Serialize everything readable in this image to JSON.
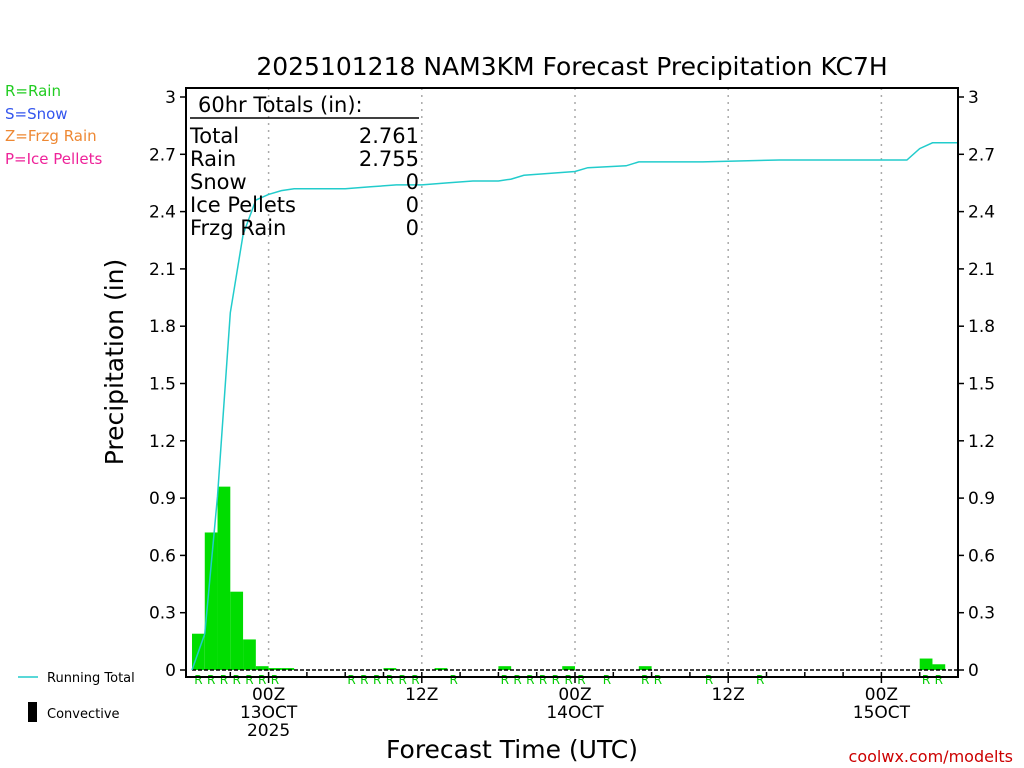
{
  "legend_left": {
    "items": [
      {
        "label": "R=Rain",
        "color": "#22cc22"
      },
      {
        "label": "S=Snow",
        "color": "#3355ee"
      },
      {
        "label": "Z=Frzg Rain",
        "color": "#ee8833"
      },
      {
        "label": "P=Ice Pellets",
        "color": "#ee2299"
      }
    ],
    "running_total": "Running Total",
    "convective": "Convective"
  },
  "totals_box": {
    "header": "60hr Totals (in):",
    "rows": [
      {
        "label": "Total",
        "value": "2.761"
      },
      {
        "label": "Rain",
        "value": "2.755"
      },
      {
        "label": "Snow",
        "value": "0"
      },
      {
        "label": "Ice Pellets",
        "value": "0"
      },
      {
        "label": "Frzg Rain",
        "value": "0"
      }
    ]
  },
  "credit": "coolwx.com/modelts",
  "colors": {
    "rain_bar": "#00dd00",
    "running_total": "#22cccc",
    "grid": "#aaaaaa"
  },
  "chart_data": {
    "type": "bar",
    "title": "2025101218 NAM3KM Forecast Precipitation KC7H",
    "xlabel": "Forecast Time (UTC)",
    "ylabel": "Precipitation (in)",
    "ylim": [
      0,
      3
    ],
    "yticks": [
      "0",
      "0.3",
      "0.6",
      "0.9",
      "1.2",
      "1.5",
      "1.8",
      "2.1",
      "2.4",
      "2.7",
      "3"
    ],
    "x_unit": "forecast hour",
    "xlim": [
      0,
      60
    ],
    "xticks": [
      {
        "hour": 6,
        "lines": [
          "00Z",
          "13OCT",
          "2025"
        ]
      },
      {
        "hour": 18,
        "lines": [
          "12Z"
        ]
      },
      {
        "hour": 30,
        "lines": [
          "00Z",
          "14OCT"
        ]
      },
      {
        "hour": 42,
        "lines": [
          "12Z"
        ]
      },
      {
        "hour": 54,
        "lines": [
          "00Z",
          "15OCT"
        ]
      }
    ],
    "hourly_precip": {
      "name": "Rain",
      "hours": [
        1,
        2,
        3,
        4,
        5,
        6,
        7,
        8,
        9,
        10,
        11,
        12,
        13,
        14,
        15,
        16,
        17,
        18,
        19,
        20,
        21,
        22,
        23,
        24,
        25,
        26,
        27,
        28,
        29,
        30,
        31,
        32,
        33,
        34,
        35,
        36,
        37,
        38,
        39,
        40,
        41,
        42,
        43,
        44,
        45,
        46,
        47,
        48,
        49,
        50,
        51,
        52,
        53,
        54,
        55,
        56,
        57,
        58,
        59,
        60
      ],
      "values": [
        0.19,
        0.72,
        0.96,
        0.41,
        0.16,
        0.02,
        0.01,
        0.01,
        0.0,
        0.0,
        0.0,
        0.0,
        0.0,
        0.0,
        0.0,
        0.01,
        0.0,
        0.0,
        0.0,
        0.01,
        0.0,
        0.0,
        0.0,
        0.0,
        0.02,
        0.0,
        0.0,
        0.0,
        0.0,
        0.02,
        0.0,
        0.0,
        0.0,
        0.0,
        0.0,
        0.02,
        0.0,
        0.0,
        0.0,
        0.0,
        0.0,
        0.0,
        0.0,
        0.0,
        0.0,
        0.0,
        0.0,
        0.0,
        0.0,
        0.0,
        0.0,
        0.0,
        0.0,
        0.0,
        0.0,
        0.0,
        0.0,
        0.06,
        0.03,
        0.0
      ]
    },
    "running_total": {
      "name": "Running Total",
      "hours": [
        0,
        1,
        2,
        3,
        4,
        5,
        6,
        7,
        8,
        10,
        12,
        14,
        16,
        18,
        20,
        22,
        24,
        25,
        26,
        28,
        30,
        31,
        34,
        35,
        40,
        46,
        52,
        56,
        57,
        58,
        60
      ],
      "values": [
        0.0,
        0.19,
        0.91,
        1.87,
        2.28,
        2.46,
        2.49,
        2.51,
        2.52,
        2.52,
        2.52,
        2.53,
        2.54,
        2.54,
        2.55,
        2.56,
        2.56,
        2.57,
        2.59,
        2.6,
        2.61,
        2.63,
        2.64,
        2.66,
        2.66,
        2.67,
        2.67,
        2.67,
        2.73,
        2.76,
        2.76
      ]
    },
    "ptype_markers": {
      "label": "R",
      "hours": [
        1,
        2,
        3,
        4,
        5,
        6,
        7,
        13,
        14,
        15,
        16,
        17,
        18,
        21,
        25,
        26,
        27,
        28,
        29,
        30,
        31,
        33,
        36,
        37,
        41,
        45,
        58,
        59
      ]
    }
  }
}
